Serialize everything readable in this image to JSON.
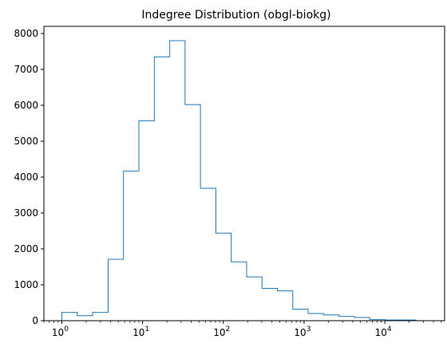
{
  "chart_data": {
    "type": "step-histogram",
    "title": "Indegree Distribution (obgl-biokg)",
    "xlabel": "",
    "ylabel": "",
    "x_scale": "log",
    "xlim": [
      0.6,
      55000
    ],
    "ylim": [
      0,
      8200
    ],
    "grid": false,
    "line_color": "#1f77b4",
    "y_ticks": [
      0,
      1000,
      2000,
      3000,
      4000,
      5000,
      6000,
      7000,
      8000
    ],
    "x_ticks": [
      {
        "value": 1,
        "base": "10",
        "exp": "0"
      },
      {
        "value": 10,
        "base": "10",
        "exp": "1"
      },
      {
        "value": 100,
        "base": "10",
        "exp": "2"
      },
      {
        "value": 1000,
        "base": "10",
        "exp": "3"
      },
      {
        "value": 10000,
        "base": "10",
        "exp": "4"
      }
    ],
    "bin_edges": [
      1,
      1.55,
      2.4,
      3.75,
      5.8,
      9.0,
      14.0,
      21.7,
      33.6,
      52.1,
      80.8,
      125.3,
      194.3,
      301.3,
      467.3,
      724.7,
      1124,
      1743,
      2703,
      4192,
      6500,
      10080,
      15640,
      24250
    ],
    "counts": [
      230,
      140,
      230,
      1710,
      4170,
      5570,
      7350,
      7800,
      6020,
      3690,
      2440,
      1640,
      1220,
      900,
      830,
      320,
      200,
      160,
      120,
      90,
      30,
      20,
      20
    ]
  }
}
